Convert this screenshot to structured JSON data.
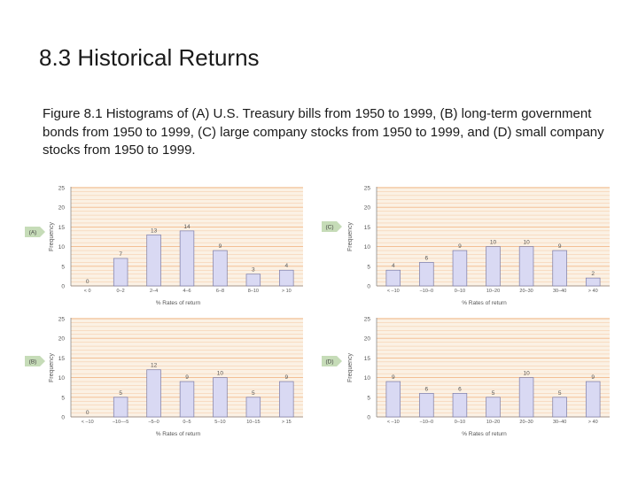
{
  "slide": {
    "title": "8.3  Historical Returns",
    "caption": "Figure 8.1  Histograms of (A) U.S. Treasury bills from 1950 to 1999, (B) long-term government bonds from 1950 to 1999, (C) large company stocks from 1950 to 1999, and (D) small company stocks from 1950 to 1999."
  },
  "colors": {
    "bar_fill": "#d9d9f3",
    "bar_stroke": "#7b7ba6",
    "grid": "#f2b98a",
    "panel_bg": "#fbf1e4",
    "tag_bg": "#c6dcb8",
    "text": "#555555"
  },
  "chart_data": [
    {
      "type": "bar",
      "panel_label": "(A)",
      "categories": [
        "< 0",
        "0–2",
        "2–4",
        "4–6",
        "6–8",
        "8–10",
        "> 10"
      ],
      "values": [
        0,
        7,
        13,
        14,
        9,
        3,
        4
      ],
      "xlabel": "% Rates of return",
      "ylabel": "Frequency",
      "ylim": [
        0,
        25
      ],
      "yticks": [
        0,
        5,
        10,
        15,
        20,
        25
      ],
      "grid": true
    },
    {
      "type": "bar",
      "panel_label": "(C)",
      "categories": [
        "< –10",
        "–10–0",
        "0–10",
        "10–20",
        "20–30",
        "30–40",
        "> 40"
      ],
      "values": [
        4,
        6,
        9,
        10,
        10,
        9,
        2
      ],
      "xlabel": "% Rates of return",
      "ylabel": "Frequency",
      "ylim": [
        0,
        25
      ],
      "yticks": [
        0,
        5,
        10,
        15,
        20,
        25
      ],
      "grid": true
    },
    {
      "type": "bar",
      "panel_label": "(B)",
      "categories": [
        "< –10",
        "–10––5",
        "–5–0",
        "0–5",
        "5–10",
        "10–15",
        "> 15"
      ],
      "values": [
        0,
        5,
        12,
        9,
        10,
        5,
        9
      ],
      "xlabel": "% Rates of return",
      "ylabel": "Frequency",
      "ylim": [
        0,
        25
      ],
      "yticks": [
        0,
        5,
        10,
        15,
        20,
        25
      ],
      "grid": true
    },
    {
      "type": "bar",
      "panel_label": "(D)",
      "categories": [
        "< –10",
        "–10–0",
        "0–10",
        "10–20",
        "20–30",
        "30–40",
        "> 40"
      ],
      "values": [
        9,
        6,
        6,
        5,
        10,
        5,
        9
      ],
      "xlabel": "% Rates of return",
      "ylabel": "Frequency",
      "ylim": [
        0,
        25
      ],
      "yticks": [
        0,
        5,
        10,
        15,
        20,
        25
      ],
      "grid": true
    }
  ]
}
